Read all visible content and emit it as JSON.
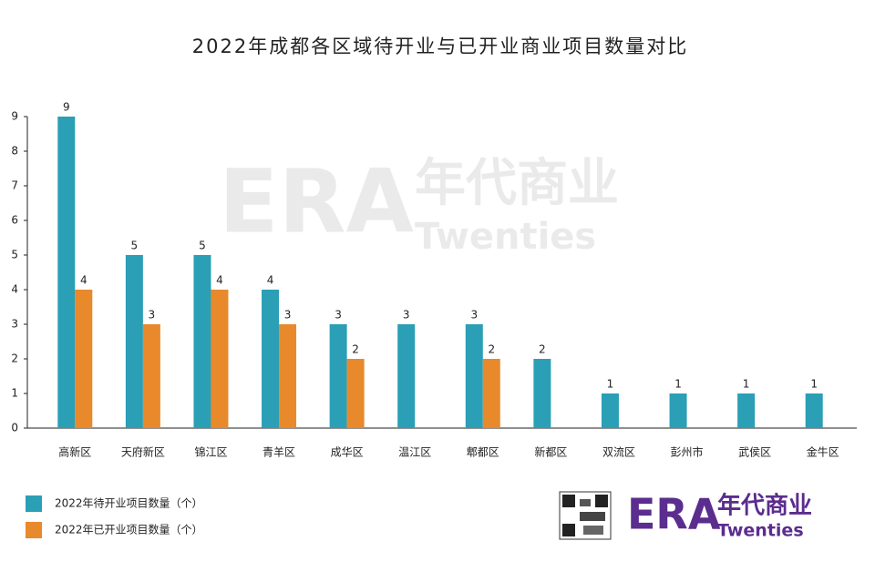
{
  "chart_data": {
    "type": "bar",
    "title": "2022年成都各区域待开业与已开业商业项目数量对比",
    "categories": [
      "高新区",
      "天府新区",
      "锦江区",
      "青羊区",
      "成华区",
      "温江区",
      "郫都区",
      "新都区",
      "双流区",
      "彭州市",
      "武侯区",
      "金牛区"
    ],
    "series": [
      {
        "name": "2022年待开业项目数量（个）",
        "color": "#2a9fb5",
        "values": [
          9,
          5,
          5,
          4,
          3,
          3,
          3,
          2,
          1,
          1,
          1,
          1
        ]
      },
      {
        "name": "2022年已开业项目数量（个）",
        "color": "#e8892b",
        "values": [
          4,
          3,
          4,
          3,
          2,
          null,
          2,
          null,
          null,
          null,
          null,
          null
        ]
      }
    ],
    "ylim": [
      0,
      9
    ],
    "yticks": [
      0,
      1,
      2,
      3,
      4,
      5,
      6,
      7,
      8,
      9
    ],
    "grid": false,
    "legend": "bottom-left",
    "logo": {
      "mark": "ERA",
      "cn": "年代商业",
      "en": "Twenties"
    }
  }
}
